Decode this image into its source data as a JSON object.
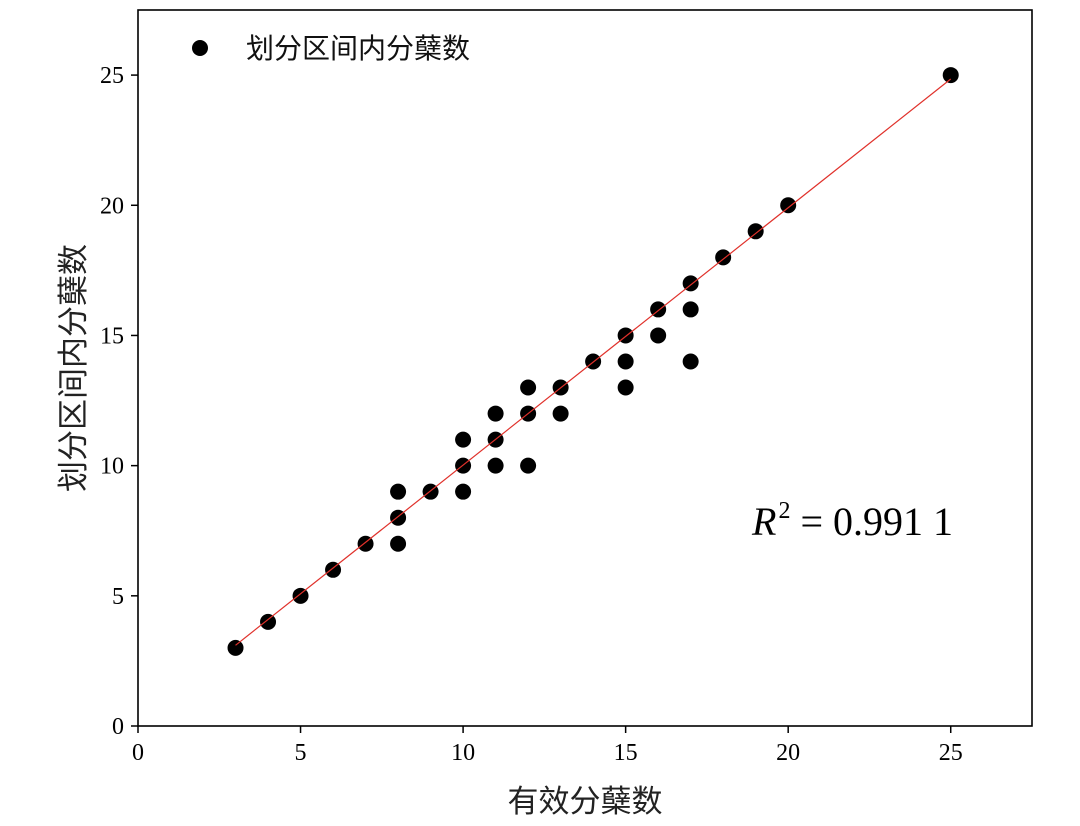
{
  "chart_data": {
    "type": "scatter",
    "xlabel": "有效分蘖数",
    "ylabel": "划分区间内分蘖数",
    "xlim": [
      0,
      27.5
    ],
    "ylim": [
      0,
      27.5
    ],
    "xticks": [
      0,
      5,
      10,
      15,
      20,
      25
    ],
    "yticks": [
      0,
      5,
      10,
      15,
      20,
      25
    ],
    "grid": false,
    "legend_position": "top-left",
    "series": [
      {
        "name": "划分区间内分蘖数",
        "color": "#000000",
        "x": [
          3,
          4,
          5,
          6,
          7,
          8,
          8,
          8,
          9,
          10,
          10,
          10,
          11,
          11,
          11,
          12,
          12,
          12,
          13,
          13,
          14,
          15,
          15,
          15,
          16,
          16,
          17,
          17,
          17,
          18,
          19,
          20,
          25
        ],
        "y": [
          3,
          4,
          5,
          6,
          7,
          7,
          8,
          9,
          9,
          9,
          10,
          11,
          10,
          11,
          12,
          10,
          12,
          13,
          12,
          13,
          14,
          13,
          14,
          15,
          15,
          16,
          14,
          16,
          17,
          18,
          19,
          20,
          25
        ]
      }
    ],
    "fit_line": {
      "color": "#e0312b",
      "x": [
        3,
        25
      ],
      "y": [
        3.1,
        24.85
      ]
    },
    "annotation": {
      "symbol": "R",
      "exponent": "2",
      "value": "= 0.991 1"
    }
  }
}
